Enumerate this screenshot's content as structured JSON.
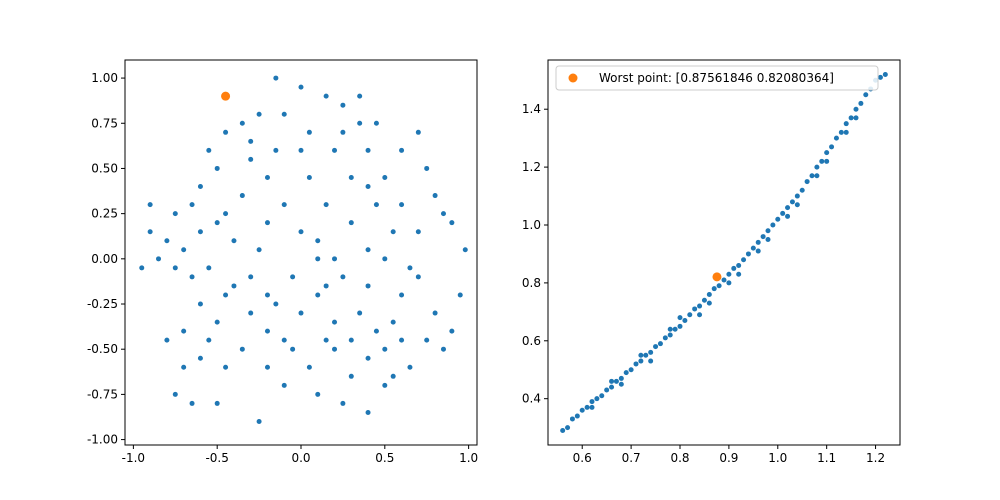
{
  "chart_data": [
    {
      "type": "scatter",
      "xlim": [
        -1.05,
        1.05
      ],
      "ylim": [
        -1.03,
        1.1
      ],
      "xticks": [
        "-1.0",
        "-0.5",
        "0.0",
        "0.5",
        "1.0"
      ],
      "yticks": [
        "-1.00",
        "-0.75",
        "-0.50",
        "-0.25",
        "0.00",
        "0.25",
        "0.50",
        "0.75",
        "1.00"
      ],
      "grid": false,
      "series": [
        {
          "color": "#1f77b4",
          "points": [
            [
              -0.9,
              0.3
            ],
            [
              -0.9,
              0.15
            ],
            [
              -0.8,
              0.1
            ],
            [
              -0.7,
              0.05
            ],
            [
              -0.75,
              -0.05
            ],
            [
              -0.65,
              -0.1
            ],
            [
              -0.55,
              -0.05
            ],
            [
              -0.6,
              0.15
            ],
            [
              -0.5,
              0.2
            ],
            [
              -0.45,
              0.25
            ],
            [
              -0.35,
              0.35
            ],
            [
              -0.4,
              0.1
            ],
            [
              -0.3,
              -0.1
            ],
            [
              -0.2,
              -0.2
            ],
            [
              -0.3,
              -0.3
            ],
            [
              -0.45,
              -0.2
            ],
            [
              -0.5,
              -0.35
            ],
            [
              -0.55,
              -0.45
            ],
            [
              -0.6,
              -0.55
            ],
            [
              -0.7,
              -0.6
            ],
            [
              -0.75,
              -0.75
            ],
            [
              -0.65,
              -0.8
            ],
            [
              -0.5,
              -0.8
            ],
            [
              -0.25,
              -0.9
            ],
            [
              -0.2,
              -0.6
            ],
            [
              -0.1,
              -0.45
            ],
            [
              0.0,
              -0.3
            ],
            [
              0.1,
              -0.2
            ],
            [
              0.2,
              -0.35
            ],
            [
              0.3,
              -0.45
            ],
            [
              0.4,
              -0.55
            ],
            [
              0.5,
              -0.5
            ],
            [
              0.55,
              -0.35
            ],
            [
              0.6,
              -0.2
            ],
            [
              0.7,
              -0.1
            ],
            [
              0.8,
              -0.3
            ],
            [
              0.9,
              -0.4
            ],
            [
              0.95,
              -0.2
            ],
            [
              0.98,
              0.05
            ],
            [
              0.9,
              0.2
            ],
            [
              0.8,
              0.35
            ],
            [
              0.7,
              0.15
            ],
            [
              0.6,
              0.3
            ],
            [
              0.5,
              0.45
            ],
            [
              0.4,
              0.6
            ],
            [
              0.35,
              0.75
            ],
            [
              0.25,
              0.85
            ],
            [
              0.15,
              0.9
            ],
            [
              0.0,
              0.95
            ],
            [
              -0.15,
              1.0
            ],
            [
              -0.25,
              0.8
            ],
            [
              -0.35,
              0.75
            ],
            [
              -0.45,
              0.7
            ],
            [
              -0.55,
              0.6
            ],
            [
              -0.1,
              0.8
            ],
            [
              0.05,
              0.7
            ],
            [
              0.2,
              0.6
            ],
            [
              0.3,
              0.45
            ],
            [
              0.45,
              0.3
            ],
            [
              0.55,
              0.15
            ],
            [
              0.5,
              0.0
            ],
            [
              0.4,
              -0.15
            ],
            [
              0.25,
              -0.1
            ],
            [
              0.1,
              0.0
            ],
            [
              0.0,
              0.15
            ],
            [
              -0.1,
              0.3
            ],
            [
              -0.2,
              0.45
            ],
            [
              -0.3,
              0.55
            ],
            [
              -0.15,
              0.6
            ],
            [
              0.05,
              0.45
            ],
            [
              0.15,
              0.3
            ],
            [
              0.3,
              0.2
            ],
            [
              0.4,
              0.05
            ],
            [
              0.35,
              -0.3
            ],
            [
              0.2,
              -0.5
            ],
            [
              0.05,
              -0.6
            ],
            [
              -0.1,
              -0.7
            ],
            [
              0.1,
              -0.75
            ],
            [
              0.25,
              -0.8
            ],
            [
              0.4,
              -0.85
            ],
            [
              0.5,
              -0.7
            ],
            [
              0.65,
              -0.6
            ],
            [
              0.75,
              -0.45
            ],
            [
              0.85,
              -0.5
            ],
            [
              0.3,
              -0.65
            ],
            [
              0.15,
              -0.45
            ],
            [
              -0.05,
              -0.5
            ],
            [
              -0.2,
              -0.4
            ],
            [
              -0.35,
              -0.5
            ],
            [
              -0.45,
              -0.6
            ],
            [
              -0.6,
              -0.25
            ],
            [
              -0.7,
              -0.4
            ],
            [
              -0.8,
              -0.45
            ],
            [
              -0.85,
              0.0
            ],
            [
              -0.95,
              -0.05
            ],
            [
              -0.75,
              0.25
            ],
            [
              -0.6,
              0.4
            ],
            [
              -0.5,
              0.5
            ],
            [
              0.6,
              0.6
            ],
            [
              0.7,
              0.7
            ],
            [
              0.75,
              0.5
            ],
            [
              0.85,
              0.25
            ],
            [
              0.65,
              -0.05
            ],
            [
              0.45,
              -0.4
            ],
            [
              0.35,
              0.9
            ],
            [
              0.1,
              0.1
            ],
            [
              -0.05,
              -0.1
            ],
            [
              -0.25,
              0.05
            ],
            [
              0.2,
              0.0
            ],
            [
              0.55,
              -0.65
            ],
            [
              0.45,
              0.75
            ],
            [
              -0.4,
              -0.15
            ],
            [
              0.25,
              0.7
            ],
            [
              -0.2,
              0.2
            ],
            [
              0.15,
              -0.15
            ],
            [
              -0.65,
              0.3
            ],
            [
              0.6,
              -0.45
            ],
            [
              0.0,
              0.6
            ],
            [
              -0.15,
              -0.25
            ],
            [
              0.4,
              0.4
            ],
            [
              -0.3,
              0.65
            ]
          ]
        },
        {
          "color": "#ff7f0e",
          "points": [
            [
              -0.45,
              0.9
            ]
          ]
        }
      ]
    },
    {
      "type": "scatter",
      "xlim": [
        0.53,
        1.25
      ],
      "ylim": [
        0.24,
        1.57
      ],
      "xticks": [
        "0.6",
        "0.7",
        "0.8",
        "0.9",
        "1.0",
        "1.1",
        "1.2"
      ],
      "yticks": [
        "0.4",
        "0.6",
        "0.8",
        "1.0",
        "1.2",
        "1.4"
      ],
      "grid": false,
      "legend": "top-left",
      "series": [
        {
          "color": "#1f77b4",
          "points": [
            [
              0.56,
              0.29
            ],
            [
              0.58,
              0.33
            ],
            [
              0.6,
              0.36
            ],
            [
              0.62,
              0.39
            ],
            [
              0.64,
              0.41
            ],
            [
              0.66,
              0.44
            ],
            [
              0.68,
              0.47
            ],
            [
              0.7,
              0.5
            ],
            [
              0.72,
              0.53
            ],
            [
              0.74,
              0.56
            ],
            [
              0.76,
              0.59
            ],
            [
              0.78,
              0.62
            ],
            [
              0.8,
              0.65
            ],
            [
              0.82,
              0.69
            ],
            [
              0.84,
              0.72
            ],
            [
              0.86,
              0.76
            ],
            [
              0.88,
              0.79
            ],
            [
              0.9,
              0.83
            ],
            [
              0.92,
              0.86
            ],
            [
              0.94,
              0.9
            ],
            [
              0.96,
              0.94
            ],
            [
              0.98,
              0.98
            ],
            [
              1.0,
              1.02
            ],
            [
              1.02,
              1.06
            ],
            [
              1.04,
              1.1
            ],
            [
              1.06,
              1.15
            ],
            [
              1.08,
              1.2
            ],
            [
              1.1,
              1.25
            ],
            [
              1.12,
              1.3
            ],
            [
              1.14,
              1.35
            ],
            [
              1.16,
              1.4
            ],
            [
              1.18,
              1.45
            ],
            [
              1.2,
              1.5
            ],
            [
              1.22,
              1.52
            ],
            [
              0.57,
              0.3
            ],
            [
              0.59,
              0.34
            ],
            [
              0.61,
              0.37
            ],
            [
              0.63,
              0.4
            ],
            [
              0.65,
              0.43
            ],
            [
              0.67,
              0.46
            ],
            [
              0.69,
              0.49
            ],
            [
              0.71,
              0.52
            ],
            [
              0.73,
              0.55
            ],
            [
              0.75,
              0.58
            ],
            [
              0.77,
              0.61
            ],
            [
              0.79,
              0.64
            ],
            [
              0.81,
              0.67
            ],
            [
              0.83,
              0.71
            ],
            [
              0.85,
              0.74
            ],
            [
              0.87,
              0.78
            ],
            [
              0.89,
              0.81
            ],
            [
              0.91,
              0.85
            ],
            [
              0.93,
              0.88
            ],
            [
              0.95,
              0.92
            ],
            [
              0.97,
              0.96
            ],
            [
              0.99,
              1.0
            ],
            [
              1.01,
              1.04
            ],
            [
              1.03,
              1.08
            ],
            [
              1.05,
              1.12
            ],
            [
              1.07,
              1.17
            ],
            [
              1.09,
              1.22
            ],
            [
              1.11,
              1.27
            ],
            [
              1.13,
              1.32
            ],
            [
              1.15,
              1.37
            ],
            [
              1.17,
              1.42
            ],
            [
              1.19,
              1.47
            ],
            [
              1.21,
              1.51
            ],
            [
              0.62,
              0.37
            ],
            [
              0.68,
              0.45
            ],
            [
              0.74,
              0.53
            ],
            [
              0.8,
              0.68
            ],
            [
              0.86,
              0.73
            ],
            [
              0.92,
              0.83
            ],
            [
              0.98,
              0.95
            ],
            [
              1.04,
              1.07
            ],
            [
              1.1,
              1.22
            ],
            [
              1.16,
              1.37
            ],
            [
              0.66,
              0.46
            ],
            [
              0.72,
              0.55
            ],
            [
              0.78,
              0.64
            ],
            [
              0.84,
              0.69
            ],
            [
              0.9,
              0.8
            ],
            [
              0.96,
              0.91
            ],
            [
              1.02,
              1.03
            ],
            [
              1.08,
              1.17
            ],
            [
              1.14,
              1.32
            ]
          ]
        },
        {
          "name": "Worst point: [0.87561846 0.82080364]",
          "color": "#ff7f0e",
          "points": [
            [
              0.8756,
              0.8208
            ]
          ]
        }
      ]
    }
  ]
}
